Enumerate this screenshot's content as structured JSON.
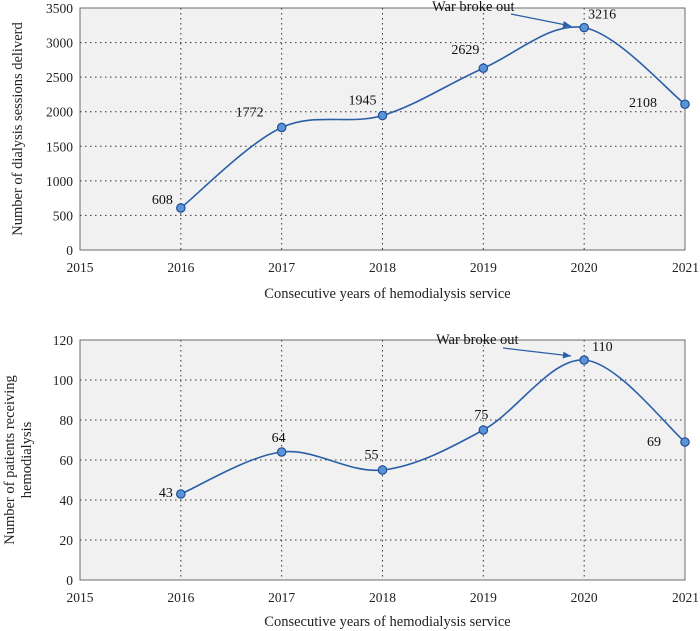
{
  "chart_data": [
    {
      "type": "line",
      "x": [
        2016,
        2017,
        2018,
        2019,
        2020,
        2021
      ],
      "values": [
        608,
        1772,
        1945,
        2629,
        3216,
        2108
      ],
      "data_labels": [
        "608",
        "1772",
        "1945",
        "2629",
        "3216",
        "2108"
      ],
      "xlabel": "Consecutive years of hemodialysis service",
      "ylabel": "Number of dialysis sessions deliverd",
      "xlim": [
        2015,
        2021
      ],
      "ylim": [
        0,
        3500
      ],
      "x_ticks": [
        "2015",
        "2016",
        "2017",
        "2018",
        "2019",
        "2020",
        "2021"
      ],
      "y_ticks": [
        "0",
        "500",
        "1000",
        "1500",
        "2000",
        "2500",
        "3000",
        "3500"
      ],
      "grid": true,
      "annotation": {
        "text": "War broke out",
        "x": 2020,
        "y": 3216
      },
      "colors": {
        "line": "#2a5fa8",
        "marker": "#5b93d8"
      }
    },
    {
      "type": "line",
      "x": [
        2016,
        2017,
        2018,
        2019,
        2020,
        2021
      ],
      "values": [
        43,
        64,
        55,
        75,
        110,
        69
      ],
      "data_labels": [
        "43",
        "64",
        "55",
        "75",
        "110",
        "69"
      ],
      "xlabel": "Consecutive years of hemodialysis service",
      "ylabel": "Number of patients receiving hemodialysis",
      "ylabel_lines": [
        "Number of patients receiving",
        "hemodialysis"
      ],
      "xlim": [
        2015,
        2021
      ],
      "ylim": [
        0,
        120
      ],
      "x_ticks": [
        "2015",
        "2016",
        "2017",
        "2018",
        "2019",
        "2020",
        "2021"
      ],
      "y_ticks": [
        "0",
        "20",
        "40",
        "60",
        "80",
        "100",
        "120"
      ],
      "grid": true,
      "annotation": {
        "text": "War broke out",
        "x": 2020,
        "y": 110
      },
      "colors": {
        "line": "#2a5fa8",
        "marker": "#5b93d8"
      }
    }
  ]
}
